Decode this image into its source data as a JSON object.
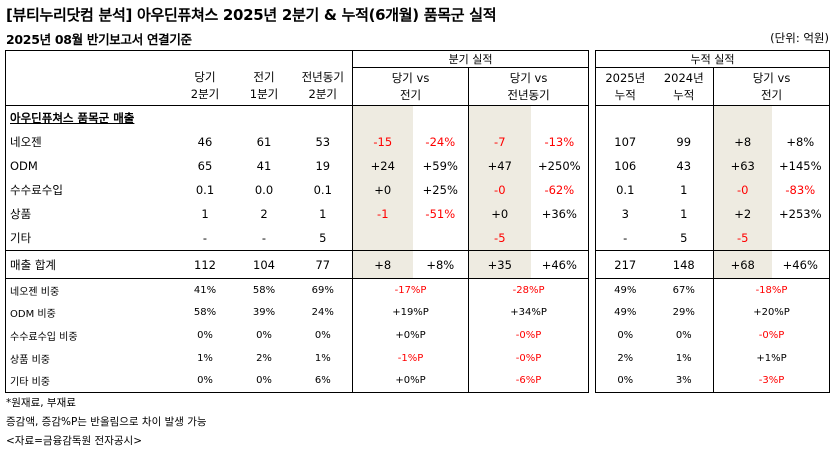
{
  "title": "[뷰티누리닷컴 분석] 아우딘퓨쳐스 2025년 2분기 & 누적(6개월) 품목군 실적",
  "subtitle": "2025년 08월 반기보고서 연결기준",
  "unit": "(단위: 억원)",
  "left_group_label": "분기 실적",
  "right_group_label": "누적 실적",
  "left_headers": [
    "당기\n2분기",
    "전기\n1분기",
    "전년동기\n2분기",
    "당기 vs\n전기",
    "당기 vs\n전년동기"
  ],
  "right_headers": [
    "2025년\n누적",
    "2024년\n누적",
    "당기 vs\n전기"
  ],
  "section_label": "아우딘퓨쳐스 품목군 매출",
  "rows": [
    {
      "label": "네오젠",
      "q": [
        "46",
        "61",
        "53"
      ],
      "vs_prev": [
        "-15",
        "-24%"
      ],
      "vs_yoy": [
        "-7",
        "-13%"
      ],
      "cum": [
        "107",
        "99"
      ],
      "cum_vs": [
        "+8",
        "+8%"
      ],
      "red": {
        "vs_prev": [
          true,
          true
        ],
        "vs_yoy": [
          true,
          true
        ],
        "cum_vs": [
          false,
          false
        ]
      }
    },
    {
      "label": "ODM",
      "q": [
        "65",
        "41",
        "19"
      ],
      "vs_prev": [
        "+24",
        "+59%"
      ],
      "vs_yoy": [
        "+47",
        "+250%"
      ],
      "cum": [
        "106",
        "43"
      ],
      "cum_vs": [
        "+63",
        "+145%"
      ],
      "red": {
        "vs_prev": [
          false,
          false
        ],
        "vs_yoy": [
          false,
          false
        ],
        "cum_vs": [
          false,
          false
        ]
      }
    },
    {
      "label": "수수료수입",
      "q": [
        "0.1",
        "0.0",
        "0.1"
      ],
      "vs_prev": [
        "+0",
        "+25%"
      ],
      "vs_yoy": [
        "-0",
        "-62%"
      ],
      "cum": [
        "0.1",
        "1"
      ],
      "cum_vs": [
        "-0",
        "-83%"
      ],
      "red": {
        "vs_prev": [
          false,
          false
        ],
        "vs_yoy": [
          true,
          true
        ],
        "cum_vs": [
          true,
          true
        ]
      }
    },
    {
      "label": "상품",
      "q": [
        "1",
        "2",
        "1"
      ],
      "vs_prev": [
        "-1",
        "-51%"
      ],
      "vs_yoy": [
        "+0",
        "+36%"
      ],
      "cum": [
        "3",
        "1"
      ],
      "cum_vs": [
        "+2",
        "+253%"
      ],
      "red": {
        "vs_prev": [
          true,
          true
        ],
        "vs_yoy": [
          false,
          false
        ],
        "cum_vs": [
          false,
          false
        ]
      }
    },
    {
      "label": "기타",
      "q": [
        "-",
        "-",
        "5"
      ],
      "vs_prev": [
        "",
        ""
      ],
      "vs_yoy": [
        "-5",
        ""
      ],
      "cum": [
        "-",
        "5"
      ],
      "cum_vs": [
        "-5",
        ""
      ],
      "red": {
        "vs_prev": [
          false,
          false
        ],
        "vs_yoy": [
          true,
          false
        ],
        "cum_vs": [
          true,
          false
        ]
      }
    }
  ],
  "total": {
    "label": "매출 합계",
    "q": [
      "112",
      "104",
      "77"
    ],
    "vs_prev": [
      "+8",
      "+8%"
    ],
    "vs_yoy": [
      "+35",
      "+46%"
    ],
    "cum": [
      "217",
      "148"
    ],
    "cum_vs": [
      "+68",
      "+46%"
    ]
  },
  "ratio_rows": [
    {
      "label": "네오젠 비중",
      "q": [
        "41%",
        "58%",
        "69%"
      ],
      "vs_prev": "-17%P",
      "vs_yoy": "-28%P",
      "cum": [
        "49%",
        "67%"
      ],
      "cum_vs": "-18%P",
      "red": [
        true,
        true,
        true
      ]
    },
    {
      "label": "ODM 비중",
      "q": [
        "58%",
        "39%",
        "24%"
      ],
      "vs_prev": "+19%P",
      "vs_yoy": "+34%P",
      "cum": [
        "49%",
        "29%"
      ],
      "cum_vs": "+20%P",
      "red": [
        false,
        false,
        false
      ]
    },
    {
      "label": "수수료수입 비중",
      "q": [
        "0%",
        "0%",
        "0%"
      ],
      "vs_prev": "+0%P",
      "vs_yoy": "-0%P",
      "cum": [
        "0%",
        "0%"
      ],
      "cum_vs": "-0%P",
      "red": [
        false,
        true,
        true
      ]
    },
    {
      "label": "상품 비중",
      "q": [
        "1%",
        "2%",
        "1%"
      ],
      "vs_prev": "-1%P",
      "vs_yoy": "-0%P",
      "cum": [
        "2%",
        "1%"
      ],
      "cum_vs": "+1%P",
      "red": [
        true,
        true,
        false
      ]
    },
    {
      "label": "기타 비중",
      "q": [
        "0%",
        "0%",
        "6%"
      ],
      "vs_prev": "+0%P",
      "vs_yoy": "-6%P",
      "cum": [
        "0%",
        "3%"
      ],
      "cum_vs": "-3%P",
      "red": [
        false,
        true,
        true
      ]
    }
  ],
  "notes": [
    "*원재료, 부재료",
    "증감액, 증감%P는 반올림으로 차이 발생 가능",
    "<자료=금융감독원 전자공시>"
  ]
}
